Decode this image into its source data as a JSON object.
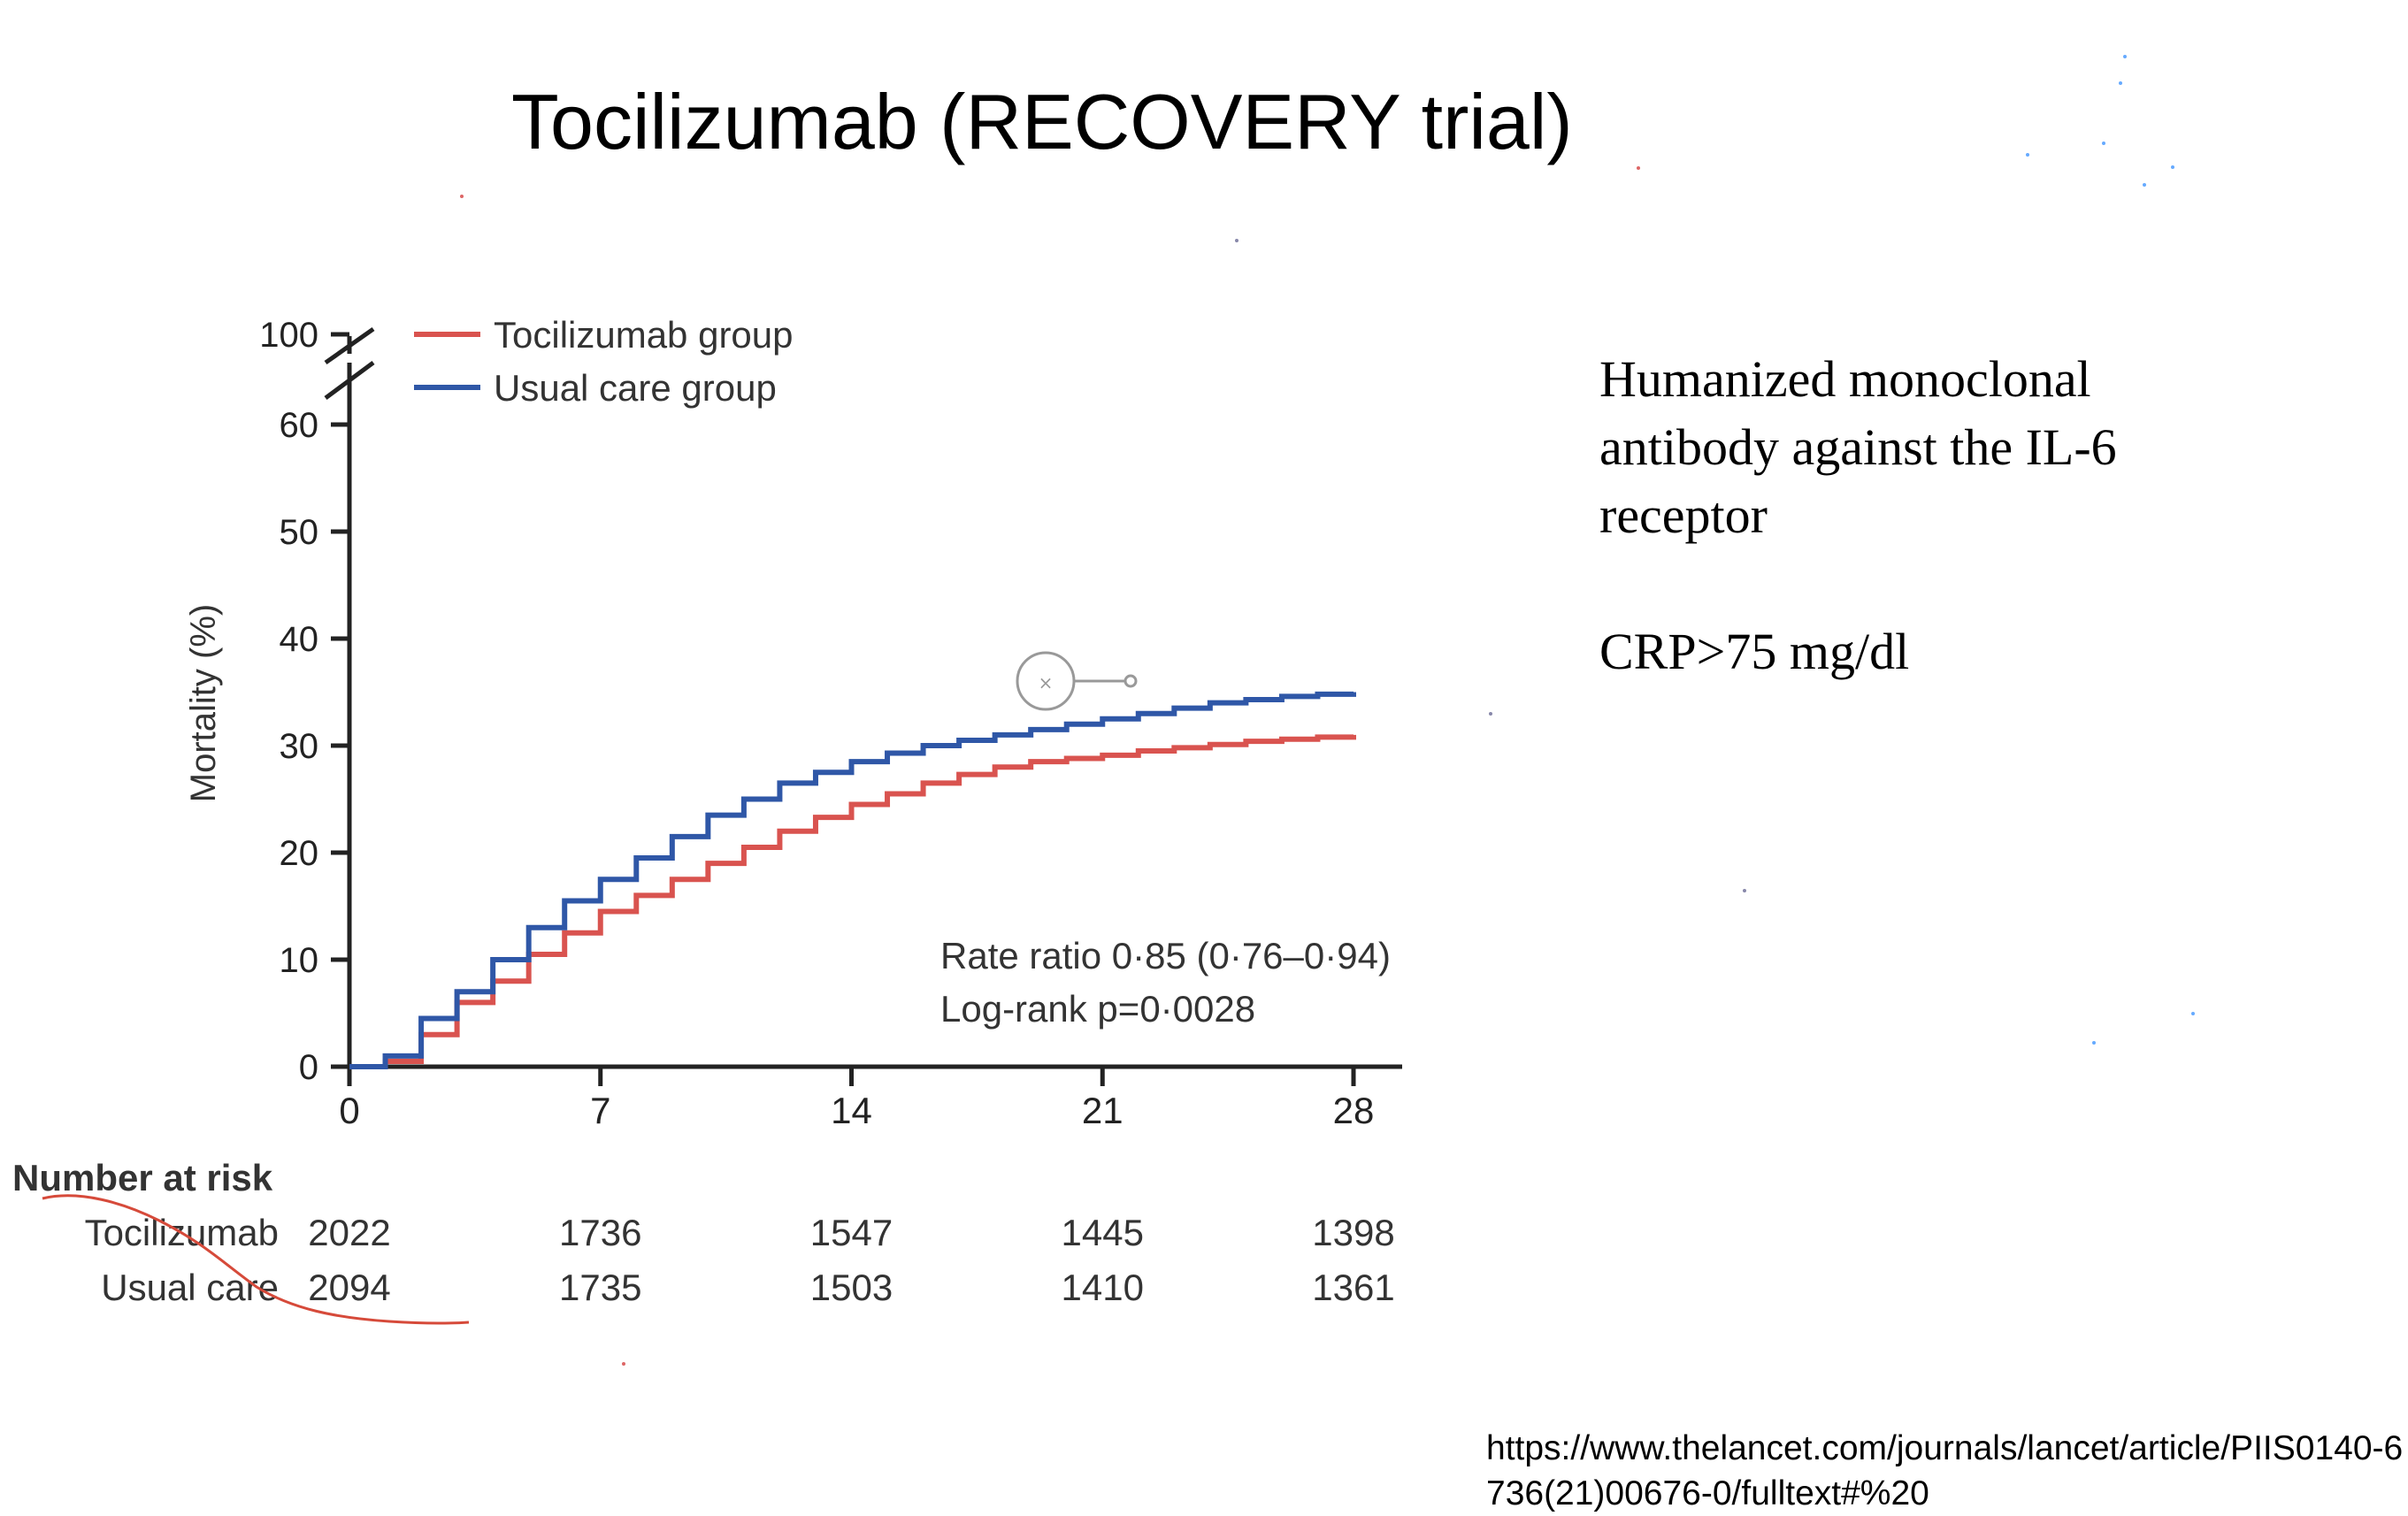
{
  "slide": {
    "title": "Tocilizumab (RECOVERY trial)",
    "description_lines": [
      "Humanized monoclonal",
      "antibody against the IL-6",
      "receptor"
    ],
    "criterion": "CRP>75 mg/dl",
    "source_url": "https://www.thelancet.com/journals/lancet/article/PIIS0140-6736(21)00676-0/fulltext#%20"
  },
  "chart_data": {
    "type": "line",
    "step": true,
    "title": "",
    "xlabel": "",
    "ylabel": "Mortality (%)",
    "xlim": [
      0,
      28
    ],
    "ylim": [
      0,
      60
    ],
    "y_axis_break_label": "100",
    "x_ticks": [
      0,
      7,
      14,
      21,
      28
    ],
    "y_ticks": [
      0,
      10,
      20,
      30,
      40,
      50,
      60
    ],
    "legend_position": "top-left",
    "series": [
      {
        "name": "Tocilizumab group",
        "color": "#d9534f",
        "x": [
          0,
          1,
          2,
          3,
          4,
          5,
          6,
          7,
          8,
          9,
          10,
          11,
          12,
          13,
          14,
          15,
          16,
          17,
          18,
          19,
          20,
          21,
          22,
          23,
          24,
          25,
          26,
          27,
          28
        ],
        "y": [
          0,
          0.5,
          3,
          6,
          8,
          10.5,
          12.5,
          14.5,
          16,
          17.5,
          19,
          20.5,
          22,
          23.3,
          24.5,
          25.5,
          26.5,
          27.3,
          28,
          28.5,
          28.8,
          29.1,
          29.5,
          29.8,
          30.1,
          30.4,
          30.6,
          30.8,
          31
        ]
      },
      {
        "name": "Usual care group",
        "color": "#2f57a7",
        "x": [
          0,
          1,
          2,
          3,
          4,
          5,
          6,
          7,
          8,
          9,
          10,
          11,
          12,
          13,
          14,
          15,
          16,
          17,
          18,
          19,
          20,
          21,
          22,
          23,
          24,
          25,
          26,
          27,
          28
        ],
        "y": [
          0,
          1,
          4.5,
          7,
          10,
          13,
          15.5,
          17.5,
          19.5,
          21.5,
          23.5,
          25,
          26.5,
          27.5,
          28.5,
          29.3,
          30,
          30.5,
          31,
          31.5,
          32,
          32.5,
          33,
          33.5,
          34,
          34.3,
          34.6,
          34.8,
          35
        ]
      }
    ],
    "annotations": [
      "Rate ratio 0·85 (0·76–0·94)",
      "Log-rank p=0·0028"
    ],
    "number_at_risk": {
      "title": "Number at risk",
      "rows": [
        {
          "label": "Tocilizumab",
          "values": [
            "2022",
            "1736",
            "1547",
            "1445",
            "1398"
          ]
        },
        {
          "label": "Usual care",
          "values": [
            "2094",
            "1735",
            "1503",
            "1410",
            "1361"
          ]
        }
      ]
    }
  }
}
